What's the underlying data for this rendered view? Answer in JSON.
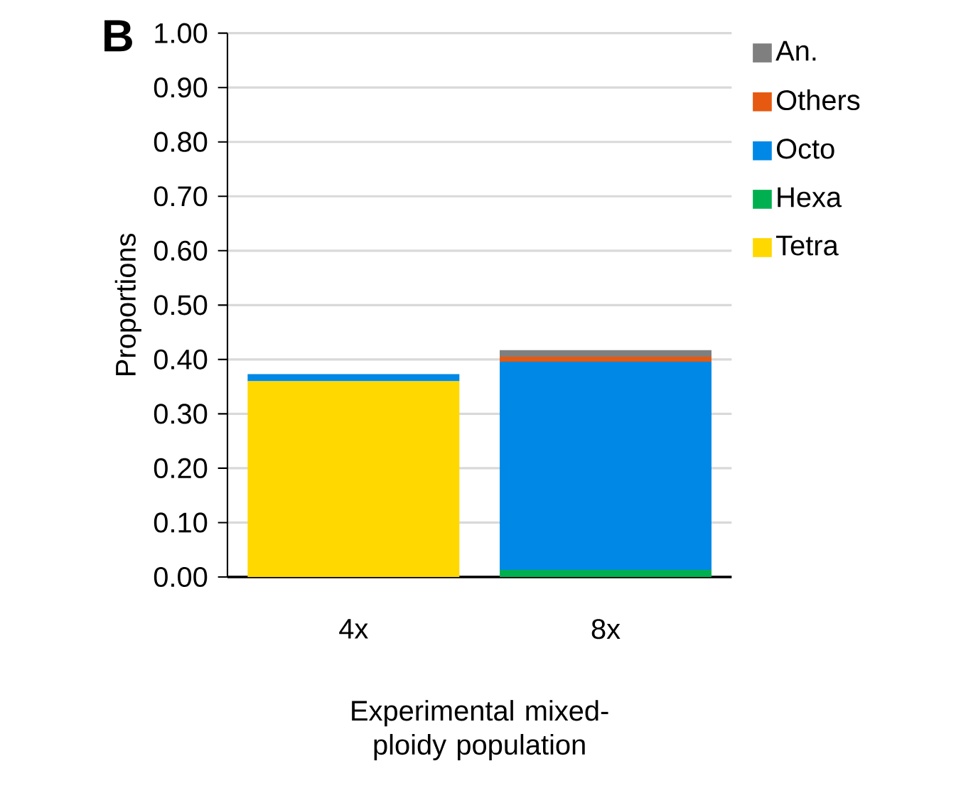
{
  "chart_data": {
    "type": "bar",
    "stacked": true,
    "ylabel": "Proportions",
    "xlabel": "Experimental mixed-ploidy population",
    "annotations": [
      "B"
    ],
    "categories": [
      "4x",
      "8x"
    ],
    "series": [
      {
        "name": "Tetra",
        "color": "#ffd800",
        "values": [
          0.36,
          0
        ]
      },
      {
        "name": "Hexa",
        "color": "#00b050",
        "values": [
          0,
          0.013
        ]
      },
      {
        "name": "Octo",
        "color": "#0088e6",
        "values": [
          0.013,
          0.383
        ]
      },
      {
        "name": "Others",
        "color": "#e55a10",
        "values": [
          0,
          0.009
        ]
      },
      {
        "name": "An.",
        "color": "#7f7f7f",
        "values": [
          0,
          0.012
        ]
      }
    ],
    "ylim": [
      0,
      1
    ],
    "yticks": [
      {
        "value": 0,
        "label": "0.00"
      },
      {
        "value": 0.1,
        "label": "0.10"
      },
      {
        "value": 0.2,
        "label": "0.20"
      },
      {
        "value": 0.3,
        "label": "0.30"
      },
      {
        "value": 0.4,
        "label": "0.40"
      },
      {
        "value": 0.5,
        "label": "0.50"
      },
      {
        "value": 0.6,
        "label": "0.60"
      },
      {
        "value": 0.7,
        "label": "0.70"
      },
      {
        "value": 0.8,
        "label": "0.80"
      },
      {
        "value": 0.9,
        "label": "0.90"
      },
      {
        "value": 1,
        "label": "1.00"
      }
    ],
    "grid": "y",
    "legend": "right"
  }
}
